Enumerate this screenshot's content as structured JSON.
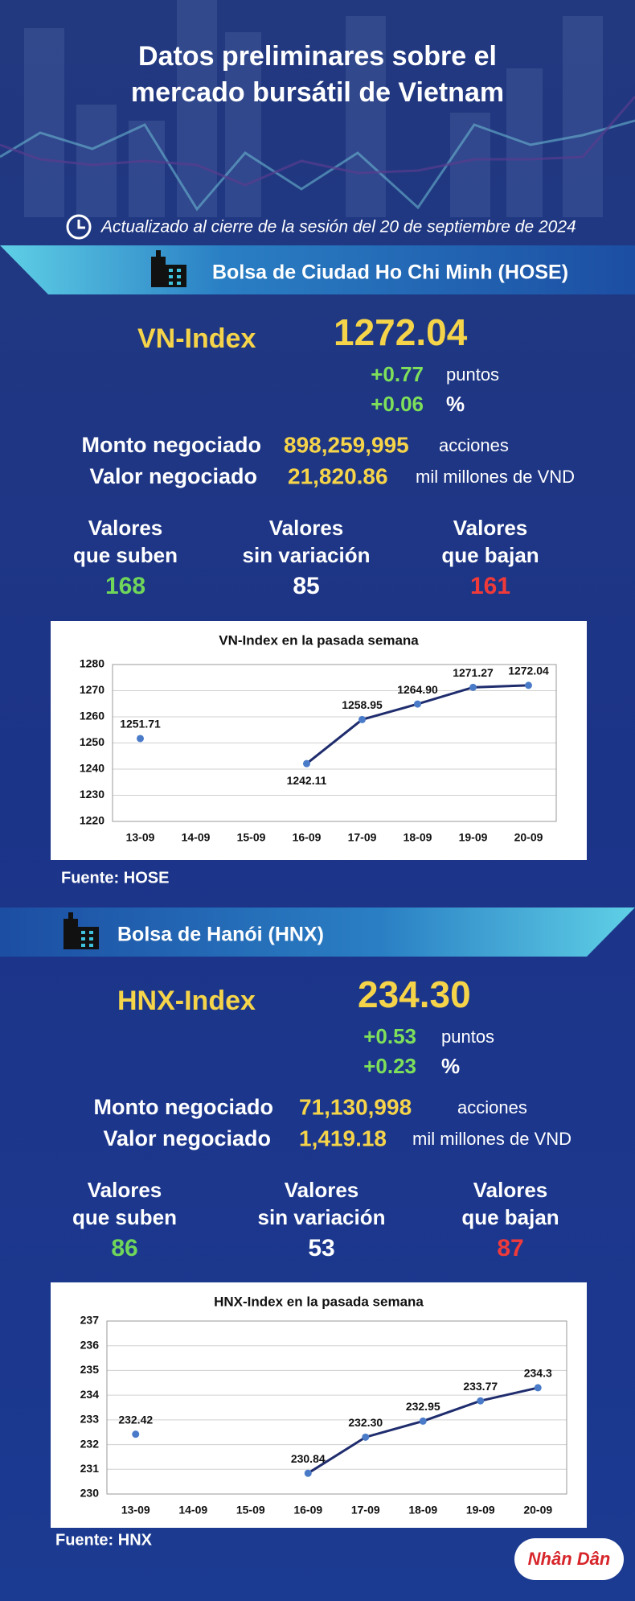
{
  "header": {
    "title_line1": "Datos preliminares sobre el",
    "title_line2": "mercado bursátil de Vietnam",
    "updated": "Actualizado al cierre de la sesión del 20 de septiembre de 2024"
  },
  "sections": [
    {
      "exchange": "Bolsa de Ciudad Ho Chi Minh (HOSE)",
      "index_name": "VN-Index",
      "index_value": "1272.04",
      "change_points": "+0.77",
      "points_unit": "puntos",
      "change_percent": "+0.06",
      "percent_unit": "%",
      "volume_label": "Monto negociado",
      "volume": "898,259,995",
      "volume_unit": "acciones",
      "value_label": "Valor negociado",
      "value": "21,820.86",
      "value_unit": "mil millones de VND",
      "up_label": [
        "Valores",
        "que suben"
      ],
      "up": 168,
      "flat_label": [
        "Valores",
        "sin variación"
      ],
      "flat": 85,
      "down_label": [
        "Valores",
        "que bajan"
      ],
      "down": 161,
      "source": "Fuente: HOSE"
    },
    {
      "exchange": "Bolsa de Hanói (HNX)",
      "index_name": "HNX-Index",
      "index_value": "234.30",
      "change_points": "+0.53",
      "points_unit": "puntos",
      "change_percent": "+0.23",
      "percent_unit": "%",
      "volume_label": "Monto negociado",
      "volume": "71,130,998",
      "volume_unit": "acciones",
      "value_label": "Valor negociado",
      "value": "1,419.18",
      "value_unit": "mil millones de VND",
      "up_label": [
        "Valores",
        "que suben"
      ],
      "up": 86,
      "flat_label": [
        "Valores",
        "sin variación"
      ],
      "flat": 53,
      "down_label": [
        "Valores",
        "que bajan"
      ],
      "down": 87,
      "source": "Fuente: HNX"
    }
  ],
  "chart_data": [
    {
      "type": "line",
      "title": "VN-Index en la pasada semana",
      "categories": [
        "13-09",
        "14-09",
        "15-09",
        "16-09",
        "17-09",
        "18-09",
        "19-09",
        "20-09"
      ],
      "values": [
        1251.71,
        null,
        null,
        1242.11,
        1258.95,
        1264.9,
        1271.27,
        1272.04
      ],
      "value_labels": [
        "1251.71",
        null,
        null,
        "1242.11",
        "1258.95",
        "1264.90",
        "1271.27",
        "1272.04"
      ],
      "color": "#1f2d6e",
      "marker_color": "#4a7bc8",
      "ylim": [
        1220,
        1280
      ],
      "yticks": [
        1220,
        1230,
        1240,
        1250,
        1260,
        1270,
        1280
      ],
      "grid": true
    },
    {
      "type": "line",
      "title": "HNX-Index en la pasada semana",
      "categories": [
        "13-09",
        "14-09",
        "15-09",
        "16-09",
        "17-09",
        "18-09",
        "19-09",
        "20-09"
      ],
      "values": [
        232.42,
        null,
        null,
        230.84,
        232.3,
        232.95,
        233.77,
        234.3
      ],
      "value_labels": [
        "232.42",
        null,
        null,
        "230.84",
        "232.30",
        "232.95",
        "233.77",
        "234.3"
      ],
      "color": "#1f2d6e",
      "marker_color": "#4a7bc8",
      "ylim": [
        230,
        237
      ],
      "yticks": [
        230,
        231,
        232,
        233,
        234,
        235,
        236,
        237
      ],
      "grid": true
    }
  ],
  "logo": "Nhân Dân"
}
